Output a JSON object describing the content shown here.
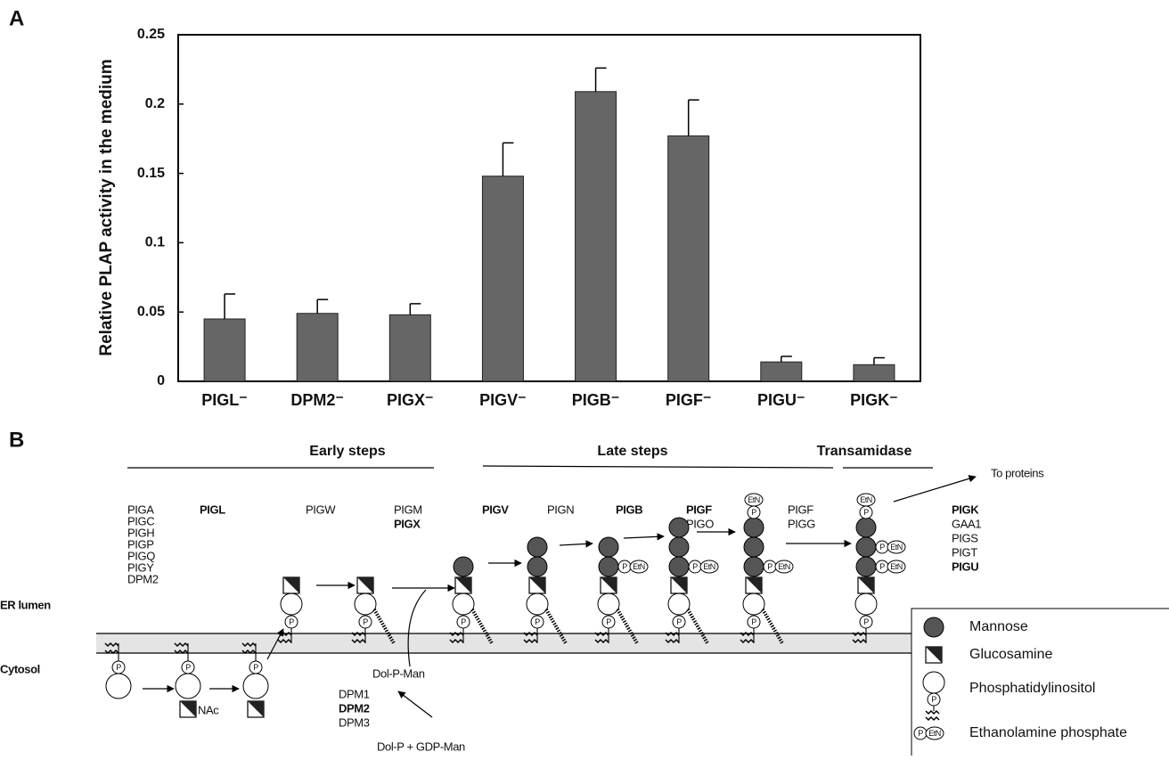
{
  "panel_labels": [
    "A",
    "B"
  ],
  "chart_data": {
    "type": "bar",
    "ylabel": "Relative PLAP activity in the medium",
    "categories": [
      "PIGL⁻",
      "DPM2⁻",
      "PIGX⁻",
      "PIGV⁻",
      "PIGB⁻",
      "PIGF⁻",
      "PIGU⁻",
      "PIGK⁻"
    ],
    "values": [
      0.045,
      0.049,
      0.048,
      0.148,
      0.209,
      0.177,
      0.014,
      0.012
    ],
    "errors": [
      0.018,
      0.01,
      0.008,
      0.024,
      0.017,
      0.026,
      0.004,
      0.005
    ],
    "color": "#666666",
    "ylim": [
      0,
      0.25
    ],
    "yticks": [
      0,
      0.05,
      0.1,
      0.15,
      0.2,
      0.25
    ],
    "grid": false
  },
  "diagram": {
    "headings": [
      "Early steps",
      "Late steps",
      "Transamidase"
    ],
    "genes": [
      [
        "PIGA",
        "PIGC",
        "PIGH",
        "PIGP",
        "PIGQ",
        "PIGY",
        "DPM2"
      ],
      [
        "PIGL"
      ],
      [
        "PIGW"
      ],
      [
        "PIGM",
        "PIGX"
      ],
      [
        "PIGV"
      ],
      [
        "PIGN"
      ],
      [
        "PIGB"
      ],
      [
        "PIGF",
        "PIGO"
      ],
      [
        "PIGF",
        "PIGG"
      ],
      [
        "PIGK",
        "GAA1",
        "PIGS",
        "PIGT",
        "PIGU"
      ]
    ],
    "compartments": [
      "ER lumen",
      "Cytosol"
    ],
    "dpm_genes": [
      "DPM1",
      "DPM2",
      "DPM3"
    ],
    "dol_p_man": "Dol-P-Man",
    "dol_p_gdp_man": "Dol-P + GDP-Man",
    "nac": "NAc",
    "to_proteins": "To proteins",
    "symbols": {
      "p": "P",
      "etn": "EtN"
    },
    "legend": [
      "Mannose",
      "Glucosamine",
      "Phosphatidylinositol",
      "Ethanolamine phosphate"
    ]
  }
}
